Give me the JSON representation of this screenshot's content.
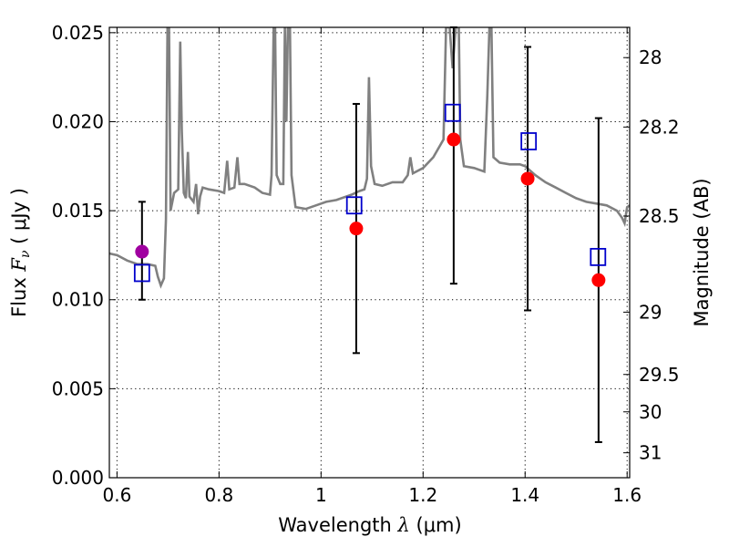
{
  "chart_data": {
    "type": "scatter",
    "xlabel": {
      "prefix": "Wavelength  ",
      "symbol": "λ",
      "suffix": " (μm)"
    },
    "ylabel": {
      "prefix": "Flux  ",
      "symbol": "F",
      "subscript": "ν",
      "suffix": "  ( μJy )"
    },
    "y2label": "Magnitude (AB)",
    "xlim": [
      0.585,
      1.605
    ],
    "ylim": [
      0.0,
      0.0253
    ],
    "grid": true,
    "x_ticks": [
      {
        "value": 0.6,
        "label": "0.6"
      },
      {
        "value": 0.8,
        "label": "0.8"
      },
      {
        "value": 1.0,
        "label": "1"
      },
      {
        "value": 1.2,
        "label": "1.2"
      },
      {
        "value": 1.4,
        "label": "1.4"
      },
      {
        "value": 1.6,
        "label": "1.6"
      }
    ],
    "y_ticks": [
      {
        "value": 0.0,
        "label": "0.000"
      },
      {
        "value": 0.005,
        "label": "0.005"
      },
      {
        "value": 0.01,
        "label": "0.010"
      },
      {
        "value": 0.015,
        "label": "0.015"
      },
      {
        "value": 0.02,
        "label": "0.020"
      },
      {
        "value": 0.025,
        "label": "0.025"
      }
    ],
    "y2_ticks": [
      {
        "flux": 0.0236,
        "label": "28"
      },
      {
        "flux": 0.0197,
        "label": "28.2"
      },
      {
        "flux": 0.0147,
        "label": "28.5"
      },
      {
        "flux": 0.0093,
        "label": "29"
      },
      {
        "flux": 0.0058,
        "label": "29.5"
      },
      {
        "flux": 0.0037,
        "label": "30"
      },
      {
        "flux": 0.0014,
        "label": "31"
      }
    ],
    "colors": {
      "spectrum": "#808080",
      "observed": "#ff0000",
      "observed_first": "#a000a0",
      "model": "#0000cc",
      "errorbar": "#000000"
    },
    "spectrum": [
      [
        0.585,
        0.0126
      ],
      [
        0.6,
        0.0125
      ],
      [
        0.62,
        0.0122
      ],
      [
        0.64,
        0.012
      ],
      [
        0.66,
        0.012
      ],
      [
        0.675,
        0.0119
      ],
      [
        0.68,
        0.0113
      ],
      [
        0.686,
        0.0108
      ],
      [
        0.692,
        0.0112
      ],
      [
        0.696,
        0.0145
      ],
      [
        0.699,
        0.0253
      ],
      [
        0.702,
        0.0253
      ],
      [
        0.705,
        0.015
      ],
      [
        0.712,
        0.016
      ],
      [
        0.72,
        0.0162
      ],
      [
        0.724,
        0.0245
      ],
      [
        0.727,
        0.0195
      ],
      [
        0.731,
        0.016
      ],
      [
        0.735,
        0.0157
      ],
      [
        0.739,
        0.0183
      ],
      [
        0.742,
        0.0158
      ],
      [
        0.75,
        0.0155
      ],
      [
        0.755,
        0.0165
      ],
      [
        0.759,
        0.0148
      ],
      [
        0.763,
        0.0158
      ],
      [
        0.768,
        0.0163
      ],
      [
        0.78,
        0.0162
      ],
      [
        0.8,
        0.0161
      ],
      [
        0.81,
        0.016
      ],
      [
        0.816,
        0.0178
      ],
      [
        0.82,
        0.0162
      ],
      [
        0.83,
        0.0163
      ],
      [
        0.836,
        0.018
      ],
      [
        0.84,
        0.0165
      ],
      [
        0.85,
        0.0165
      ],
      [
        0.87,
        0.0163
      ],
      [
        0.885,
        0.016
      ],
      [
        0.9,
        0.0159
      ],
      [
        0.903,
        0.017
      ],
      [
        0.907,
        0.0253
      ],
      [
        0.91,
        0.0253
      ],
      [
        0.913,
        0.017
      ],
      [
        0.92,
        0.0165
      ],
      [
        0.926,
        0.0165
      ],
      [
        0.929,
        0.0253
      ],
      [
        0.932,
        0.02
      ],
      [
        0.935,
        0.0253
      ],
      [
        0.939,
        0.0253
      ],
      [
        0.942,
        0.017
      ],
      [
        0.95,
        0.0152
      ],
      [
        0.97,
        0.0151
      ],
      [
        0.99,
        0.0153
      ],
      [
        1.01,
        0.0155
      ],
      [
        1.03,
        0.0156
      ],
      [
        1.06,
        0.0159
      ],
      [
        1.075,
        0.0161
      ],
      [
        1.085,
        0.0162
      ],
      [
        1.09,
        0.0168
      ],
      [
        1.094,
        0.0225
      ],
      [
        1.098,
        0.0175
      ],
      [
        1.105,
        0.0165
      ],
      [
        1.12,
        0.0164
      ],
      [
        1.14,
        0.0166
      ],
      [
        1.16,
        0.0166
      ],
      [
        1.17,
        0.017
      ],
      [
        1.175,
        0.018
      ],
      [
        1.18,
        0.0171
      ],
      [
        1.2,
        0.0174
      ],
      [
        1.22,
        0.018
      ],
      [
        1.24,
        0.019
      ],
      [
        1.245,
        0.0253
      ],
      [
        1.252,
        0.0253
      ],
      [
        1.258,
        0.023
      ],
      [
        1.264,
        0.0253
      ],
      [
        1.27,
        0.0253
      ],
      [
        1.273,
        0.019
      ],
      [
        1.28,
        0.0175
      ],
      [
        1.3,
        0.0174
      ],
      [
        1.32,
        0.0172
      ],
      [
        1.326,
        0.0215
      ],
      [
        1.33,
        0.0253
      ],
      [
        1.334,
        0.0253
      ],
      [
        1.338,
        0.018
      ],
      [
        1.35,
        0.0177
      ],
      [
        1.37,
        0.0176
      ],
      [
        1.39,
        0.0176
      ],
      [
        1.4,
        0.0175
      ],
      [
        1.42,
        0.017
      ],
      [
        1.44,
        0.0166
      ],
      [
        1.46,
        0.0163
      ],
      [
        1.48,
        0.016
      ],
      [
        1.5,
        0.0157
      ],
      [
        1.52,
        0.0155
      ],
      [
        1.54,
        0.0154
      ],
      [
        1.56,
        0.0153
      ],
      [
        1.58,
        0.015
      ],
      [
        1.59,
        0.0146
      ],
      [
        1.595,
        0.0143
      ],
      [
        1.6,
        0.0152
      ],
      [
        1.605,
        0.0153
      ]
    ],
    "observed": [
      {
        "x": 0.649,
        "y": 0.0127,
        "ylo": 0.01,
        "yhi": 0.0155
      },
      {
        "x": 1.069,
        "y": 0.014,
        "ylo": 0.007,
        "yhi": 0.021
      },
      {
        "x": 1.26,
        "y": 0.019,
        "ylo": 0.0109,
        "yhi": 0.0253
      },
      {
        "x": 1.405,
        "y": 0.0168,
        "ylo": 0.0094,
        "yhi": 0.0242
      },
      {
        "x": 1.544,
        "y": 0.0111,
        "ylo": 0.002,
        "yhi": 0.0202
      }
    ],
    "model": [
      {
        "x": 0.649,
        "y": 0.0115
      },
      {
        "x": 1.065,
        "y": 0.0153
      },
      {
        "x": 1.258,
        "y": 0.0205
      },
      {
        "x": 1.407,
        "y": 0.0189
      },
      {
        "x": 1.543,
        "y": 0.0124
      }
    ]
  }
}
